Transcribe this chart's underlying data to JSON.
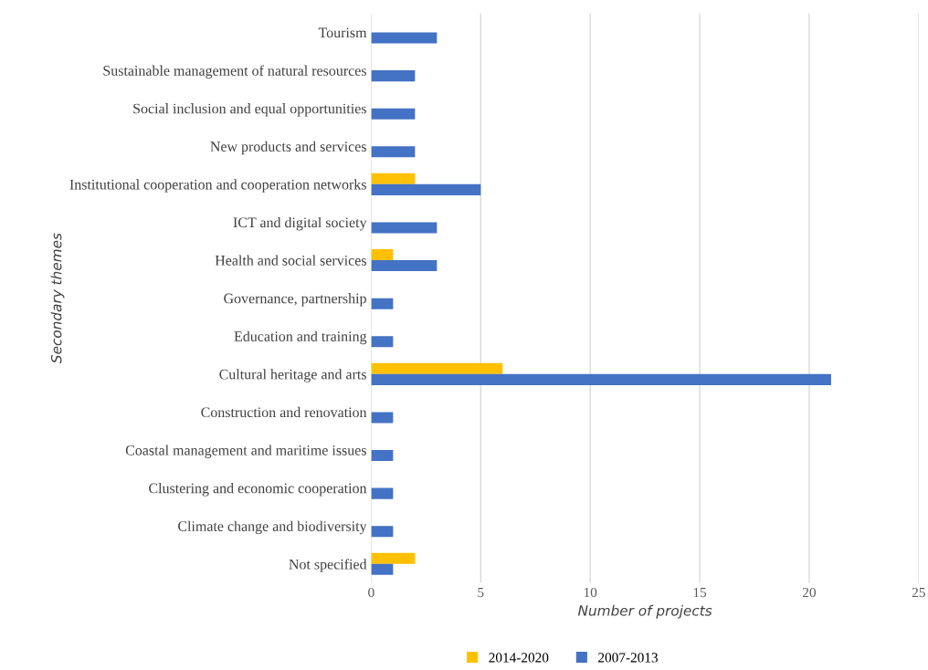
{
  "chart_data": {
    "type": "bar",
    "orientation": "horizontal",
    "xlabel": "Number of projects",
    "ylabel": "Secondary themes",
    "categories": [
      "Tourism",
      "Sustainable management of natural resources",
      "Social inclusion and equal opportunities",
      "New products and services",
      "Institutional cooperation and cooperation networks",
      "ICT and digital society",
      "Health and social services",
      "Governance, partnership",
      "Education and training",
      "Cultural heritage and arts",
      "Construction and renovation",
      "Coastal management and maritime issues",
      "Clustering and economic cooperation",
      "Climate change and biodiversity",
      "Not specified"
    ],
    "series": [
      {
        "name": "2014-2020",
        "color": "#ffc000",
        "values": [
          null,
          null,
          null,
          null,
          2,
          null,
          1,
          null,
          null,
          6,
          null,
          null,
          null,
          null,
          2
        ]
      },
      {
        "name": "2007-2013",
        "color": "#4472c4",
        "values": [
          3,
          2,
          2,
          2,
          5,
          3,
          3,
          1,
          1,
          21,
          1,
          1,
          1,
          1,
          1
        ]
      }
    ],
    "xlim": [
      0,
      25
    ],
    "xticks": [
      0,
      5,
      10,
      15,
      20,
      25
    ],
    "grid": "x",
    "legend": "bottom"
  }
}
